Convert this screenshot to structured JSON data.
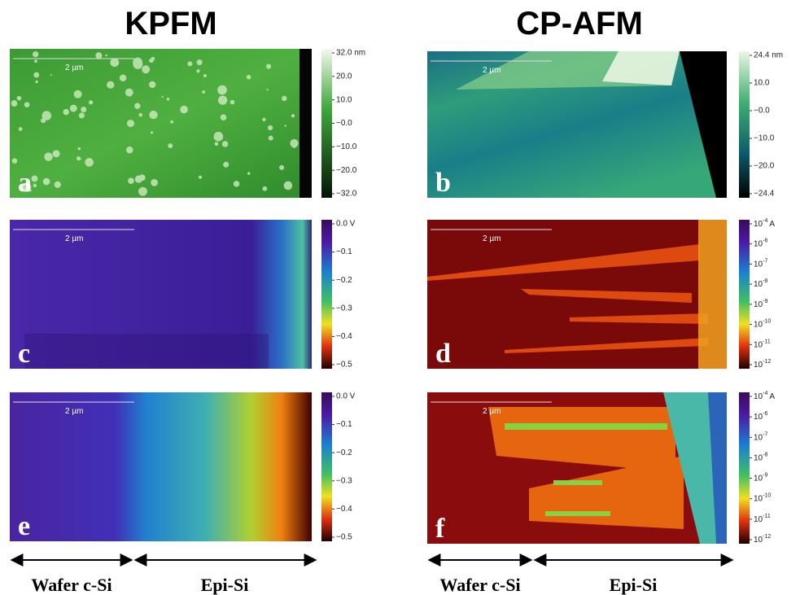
{
  "headings": {
    "left": "KPFM",
    "right": "CP-AFM"
  },
  "panels": [
    {
      "letter": "a",
      "scale_bar": "2 µm",
      "colorbar": [
        "32.0 nm",
        "20.0",
        "10.0",
        "−0.0",
        "−10.0",
        "−20.0",
        "−32.0"
      ]
    },
    {
      "letter": "b",
      "scale_bar": "2 µm",
      "colorbar": [
        "24.4 nm",
        "10.0",
        "−0.0",
        "−10.0",
        "−20.0",
        "−24.4"
      ]
    },
    {
      "letter": "c",
      "scale_bar": "2 µm",
      "colorbar": [
        "0.0 V",
        "−0.1",
        "−0.2",
        "−0.3",
        "−0.4",
        "−0.5"
      ]
    },
    {
      "letter": "d",
      "scale_bar": "2 µm",
      "colorbar": [
        {
          "base": "10",
          "exp": "-4",
          "unit": "A"
        },
        {
          "base": "10",
          "exp": "-6"
        },
        {
          "base": "10",
          "exp": "-7"
        },
        {
          "base": "10",
          "exp": "-8"
        },
        {
          "base": "10",
          "exp": "-9"
        },
        {
          "base": "10",
          "exp": "-10"
        },
        {
          "base": "10",
          "exp": "-11"
        },
        {
          "base": "10",
          "exp": "-12"
        }
      ]
    },
    {
      "letter": "e",
      "scale_bar": "2 µm",
      "colorbar": [
        "0.0 V",
        "−0.1",
        "−0.2",
        "−0.3",
        "−0.4",
        "−0.5"
      ]
    },
    {
      "letter": "f",
      "scale_bar": "2 µm",
      "colorbar": [
        {
          "base": "10",
          "exp": "-4",
          "unit": "A"
        },
        {
          "base": "10",
          "exp": "-6"
        },
        {
          "base": "10",
          "exp": "-7"
        },
        {
          "base": "10",
          "exp": "-8"
        },
        {
          "base": "10",
          "exp": "-9"
        },
        {
          "base": "10",
          "exp": "-10"
        },
        {
          "base": "10",
          "exp": "-11"
        },
        {
          "base": "10",
          "exp": "-12"
        }
      ]
    }
  ],
  "regions": {
    "left": [
      "Wafer c-Si",
      "Epi-Si"
    ],
    "right": [
      "Wafer c-Si",
      "Epi-Si"
    ]
  }
}
